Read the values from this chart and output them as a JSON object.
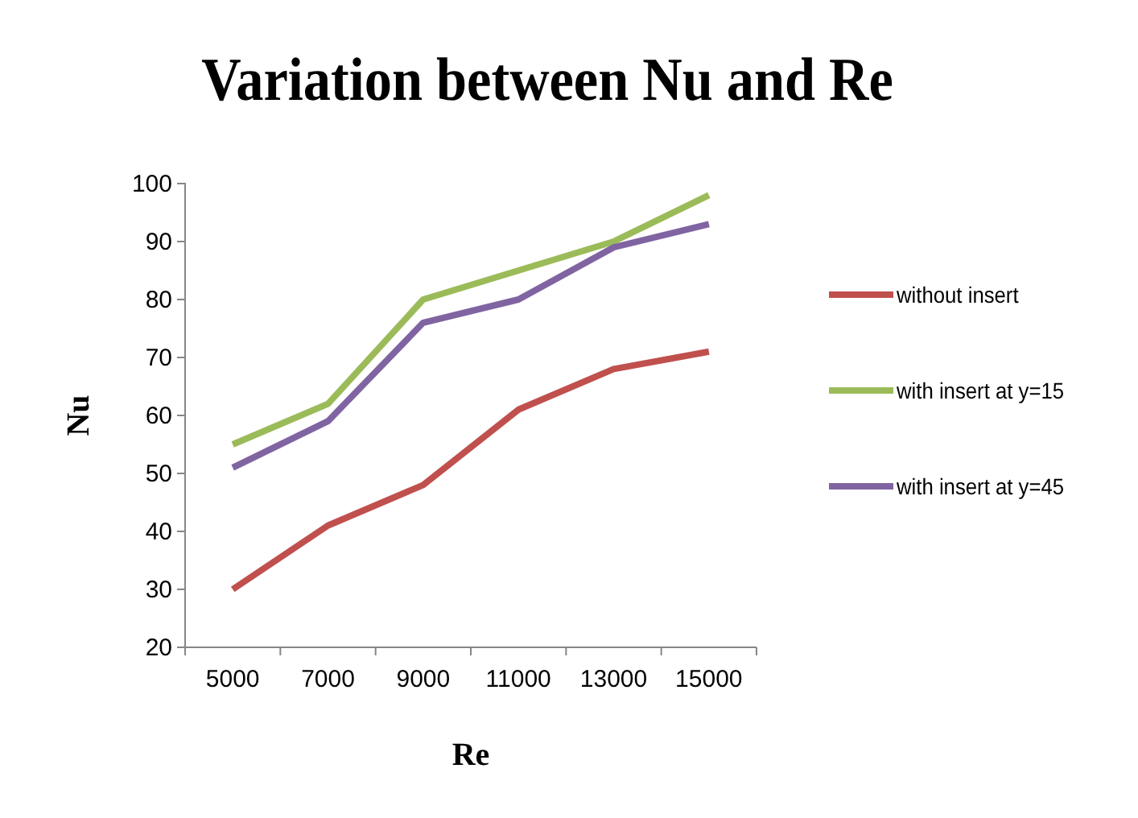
{
  "chart_data": {
    "type": "line",
    "title": "Variation between Nu and Re",
    "xlabel": "Re",
    "ylabel": "Nu",
    "categories": [
      "5000",
      "7000",
      "9000",
      "11000",
      "13000",
      "15000"
    ],
    "series": [
      {
        "name": "without insert",
        "color": "#c0504d",
        "values": [
          30,
          41,
          48,
          61,
          68,
          71
        ]
      },
      {
        "name": "with insert at y=15",
        "color": "#9bbb59",
        "values": [
          55,
          62,
          80,
          85,
          90,
          98
        ]
      },
      {
        "name": "with insert at y=45",
        "color": "#8064a2",
        "values": [
          51,
          59,
          76,
          80,
          89,
          93
        ]
      }
    ],
    "ylim": [
      20,
      100
    ],
    "yticks": [
      20,
      30,
      40,
      50,
      60,
      70,
      80,
      90,
      100
    ],
    "grid": false,
    "legend": "right",
    "marker": "none",
    "line_style": "solid"
  }
}
